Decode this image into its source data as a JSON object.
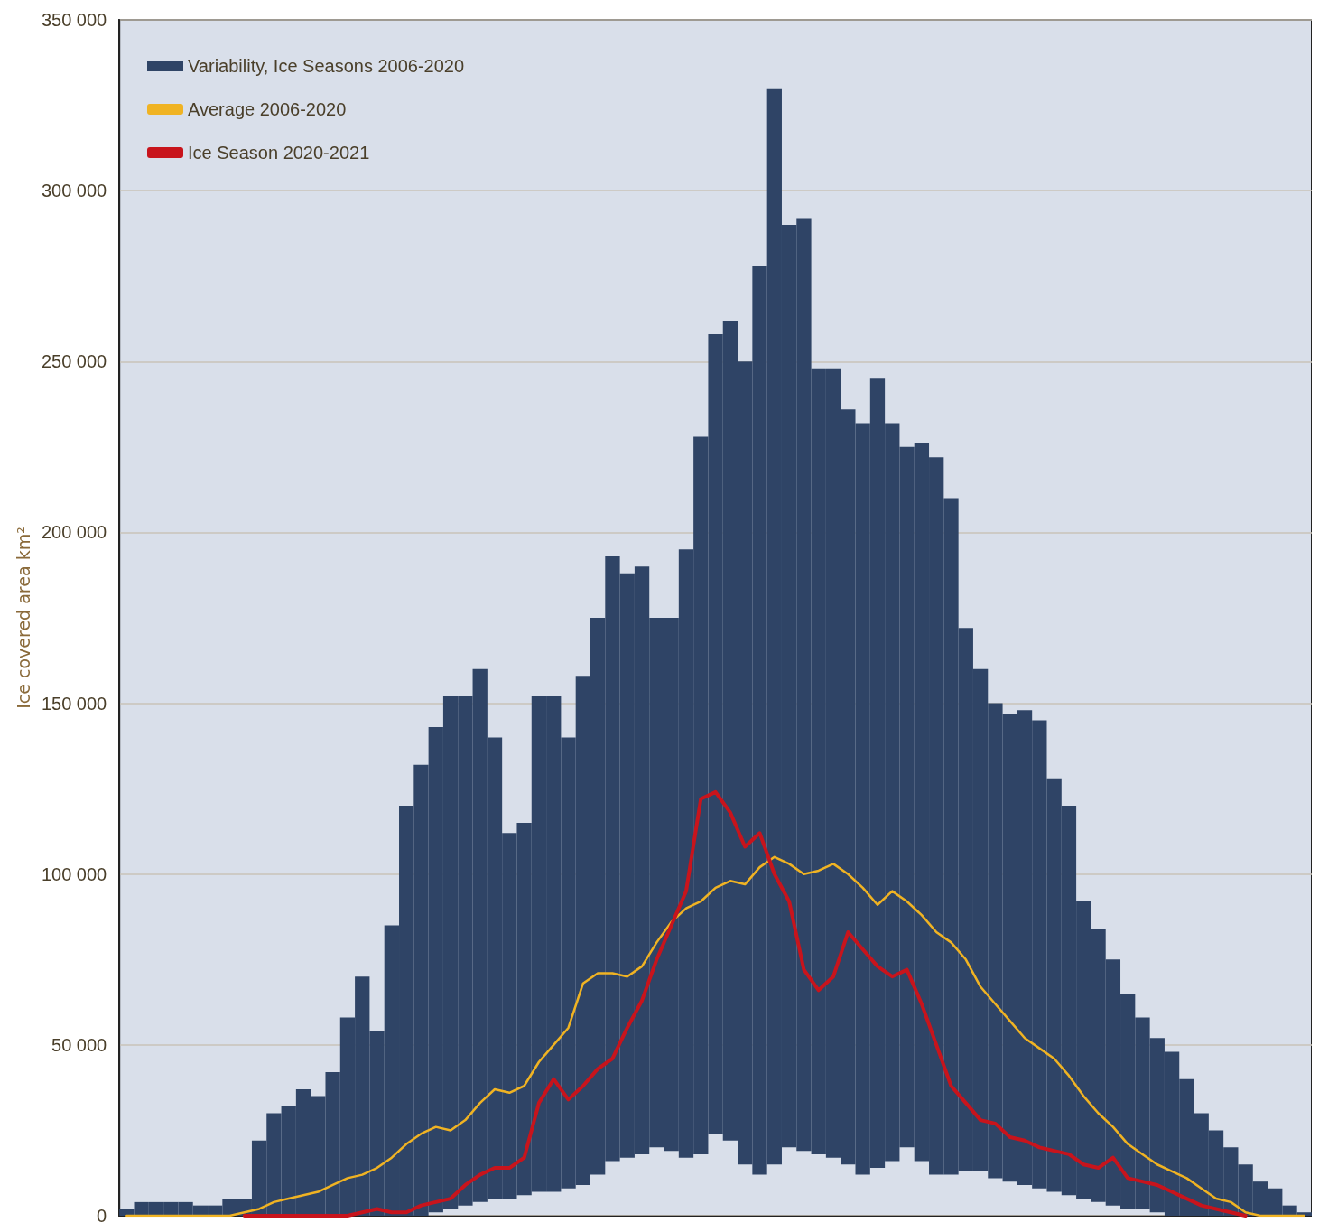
{
  "chart_data": {
    "type": "bar",
    "ylabel": "Ice covered area km²",
    "categories": [
      null,
      null,
      null,
      null,
      null,
      null,
      null,
      null,
      null,
      null,
      null,
      null,
      null,
      null,
      null,
      null,
      null,
      null,
      null,
      null,
      null,
      null,
      null,
      null,
      null,
      null,
      null,
      null,
      null,
      null,
      null,
      null,
      null,
      null,
      null,
      null,
      null,
      null,
      null,
      null,
      null,
      null,
      null,
      null,
      null,
      null,
      null,
      null,
      null,
      null,
      null,
      null,
      null,
      null,
      null,
      null,
      null,
      null,
      null,
      null,
      null,
      null,
      null,
      null,
      null,
      null,
      null,
      null,
      null,
      null,
      null,
      null,
      null,
      null,
      null,
      null,
      null,
      null,
      null,
      null,
      null
    ],
    "ylim": [
      0,
      350000
    ],
    "yticks": [
      {
        "value": 0,
        "label": "0"
      },
      {
        "value": 50000,
        "label": "50 000"
      },
      {
        "value": 100000,
        "label": "100 000"
      },
      {
        "value": 150000,
        "label": "150 000"
      },
      {
        "value": 200000,
        "label": "200 000"
      },
      {
        "value": 250000,
        "label": "250 000"
      },
      {
        "value": 300000,
        "label": "300 000"
      },
      {
        "value": 350000,
        "label": "350 000"
      }
    ],
    "grid": "y",
    "legend": "top left",
    "tick_labels": "y",
    "series": [
      {
        "name": "Variability, Ice Seasons 2006-2020",
        "color": "#2f4466",
        "base": [
          0,
          0,
          0,
          0,
          0,
          0,
          0,
          0,
          0,
          0,
          0,
          0,
          0,
          0,
          0,
          0,
          0,
          0,
          0,
          0,
          0,
          1000,
          2000,
          3000,
          4000,
          5000,
          5000,
          6000,
          7000,
          7000,
          8000,
          9000,
          12000,
          16000,
          17000,
          18000,
          20000,
          19000,
          17000,
          18000,
          24000,
          22000,
          15000,
          12000,
          15000,
          20000,
          19000,
          18000,
          17000,
          15000,
          12000,
          14000,
          16000,
          20000,
          16000,
          12000,
          12000,
          13000,
          13000,
          11000,
          10000,
          9000,
          8000,
          7000,
          6000,
          5000,
          4000,
          3000,
          2000,
          2000,
          1000,
          0,
          0,
          0,
          0,
          0,
          0,
          0,
          0,
          0,
          0
        ],
        "values": [
          2000,
          4000,
          4000,
          4000,
          4000,
          3000,
          3000,
          5000,
          5000,
          22000,
          30000,
          32000,
          37000,
          35000,
          42000,
          58000,
          70000,
          54000,
          85000,
          120000,
          132000,
          142000,
          150000,
          149000,
          156000,
          135000,
          107000,
          109000,
          145000,
          145000,
          132000,
          149000,
          163000,
          177000,
          171000,
          172000,
          155000,
          156000,
          178000,
          210000,
          234000,
          240000,
          235000,
          266000,
          315000,
          270000,
          273000,
          230000,
          231000,
          221000,
          220000,
          231000,
          216000,
          205000,
          210000,
          210000,
          198000,
          159000,
          147000,
          139000,
          137000,
          139000,
          137000,
          121000,
          114000,
          87000,
          80000,
          72000,
          63000,
          56000,
          51000,
          48000,
          40000,
          30000,
          25000,
          20000,
          15000,
          10000,
          8000,
          3000,
          1000
        ]
      },
      {
        "type": "line",
        "name": "Average 2006-2020",
        "color": "#f0b323",
        "values": [
          0,
          0,
          0,
          0,
          0,
          0,
          0,
          0,
          1000,
          2000,
          4000,
          5000,
          6000,
          7000,
          9000,
          11000,
          12000,
          14000,
          17000,
          21000,
          24000,
          26000,
          25000,
          28000,
          33000,
          37000,
          36000,
          38000,
          45000,
          50000,
          55000,
          68000,
          71000,
          71000,
          70000,
          73000,
          80000,
          86000,
          90000,
          92000,
          96000,
          98000,
          97000,
          102000,
          105000,
          103000,
          100000,
          101000,
          103000,
          100000,
          96000,
          91000,
          95000,
          92000,
          88000,
          83000,
          80000,
          75000,
          67000,
          62000,
          57000,
          52000,
          49000,
          46000,
          41000,
          35000,
          30000,
          26000,
          21000,
          18000,
          15000,
          13000,
          11000,
          8000,
          5000,
          4000,
          1000,
          0,
          0,
          0,
          0
        ]
      },
      {
        "type": "line",
        "name": "Ice Season 2020-2021",
        "color": "#c8141c",
        "values": [
          null,
          null,
          null,
          null,
          null,
          null,
          null,
          null,
          0,
          0,
          0,
          0,
          0,
          0,
          0,
          0,
          1000,
          2000,
          1000,
          1000,
          3000,
          4000,
          5000,
          9000,
          12000,
          14000,
          14000,
          17000,
          33000,
          40000,
          34000,
          38000,
          43000,
          46000,
          55000,
          63000,
          75000,
          85000,
          95000,
          122000,
          124000,
          118000,
          108000,
          112000,
          100000,
          92000,
          72000,
          66000,
          70000,
          83000,
          78000,
          73000,
          70000,
          72000,
          62000,
          50000,
          38000,
          33000,
          28000,
          27000,
          23000,
          22000,
          20000,
          19000,
          18000,
          15000,
          14000,
          17000,
          11000,
          10000,
          9000,
          7000,
          5000,
          3000,
          2000,
          1000,
          0,
          null,
          null,
          null,
          null
        ]
      }
    ]
  }
}
